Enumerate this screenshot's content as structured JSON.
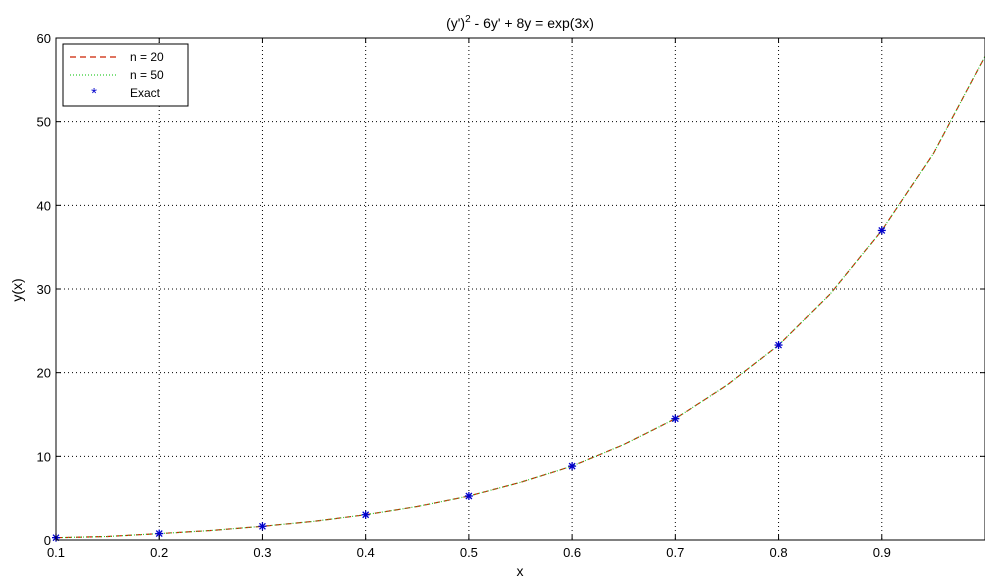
{
  "chart_data": {
    "type": "line",
    "title": "(y')² - 6y' + 8y = exp(3x)",
    "title_parts": {
      "base": "(y')",
      "sup": "2",
      "rest": " - 6y' + 8y = exp(3x)"
    },
    "xlabel": "x",
    "ylabel": "y(x)",
    "xlim": [
      0.1,
      1.0
    ],
    "ylim": [
      0,
      60
    ],
    "xticks": [
      "0.1",
      "0.2",
      "0.3",
      "0.4",
      "0.5",
      "0.6",
      "0.7",
      "0.8",
      "0.9"
    ],
    "yticks": [
      "0",
      "10",
      "20",
      "30",
      "40",
      "50",
      "60"
    ],
    "grid": true,
    "legend_position": "top-left",
    "series": [
      {
        "name": "n = 20",
        "style": "dashed",
        "color": "#cc2200",
        "x": [
          0.1,
          0.15,
          0.2,
          0.25,
          0.3,
          0.35,
          0.4,
          0.45,
          0.5,
          0.55,
          0.6,
          0.65,
          0.7,
          0.75,
          0.8,
          0.85,
          0.9,
          0.95,
          1.0
        ],
        "y": [
          0.28,
          0.42,
          0.77,
          1.14,
          1.64,
          2.23,
          3.02,
          4.0,
          5.26,
          6.9,
          8.83,
          11.4,
          14.5,
          18.5,
          23.3,
          29.4,
          37.0,
          46.2,
          57.8
        ]
      },
      {
        "name": "n = 50",
        "style": "dotted",
        "color": "#33cc33",
        "x": [
          0.1,
          0.15,
          0.2,
          0.25,
          0.3,
          0.35,
          0.4,
          0.45,
          0.5,
          0.55,
          0.6,
          0.65,
          0.7,
          0.75,
          0.8,
          0.85,
          0.9,
          0.95,
          1.0
        ],
        "y": [
          0.28,
          0.42,
          0.77,
          1.14,
          1.64,
          2.23,
          3.02,
          4.0,
          5.26,
          6.9,
          8.83,
          11.4,
          14.5,
          18.5,
          23.3,
          29.4,
          37.0,
          46.2,
          57.8
        ]
      },
      {
        "name": "Exact",
        "style": "markers",
        "marker": "asterisk",
        "color": "#0000cc",
        "x": [
          0.1,
          0.2,
          0.3,
          0.4,
          0.5,
          0.6,
          0.7,
          0.8,
          0.9
        ],
        "y": [
          0.28,
          0.77,
          1.64,
          3.02,
          5.26,
          8.83,
          14.5,
          23.3,
          37.0
        ]
      }
    ]
  }
}
